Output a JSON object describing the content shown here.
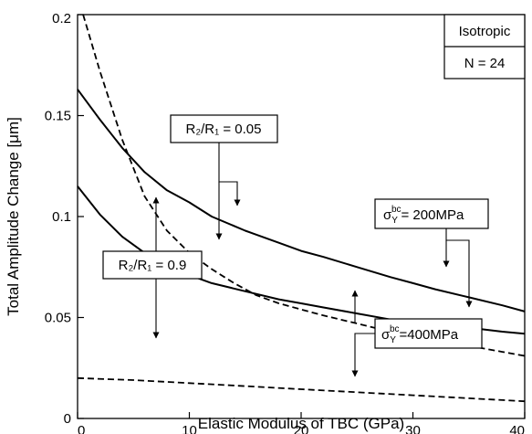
{
  "chart_data": {
    "type": "line",
    "xlabel": "Elastic Modulus of TBC  (GPa)",
    "ylabel": "Total Amplitude Change  [μm]",
    "xlim": [
      0,
      40
    ],
    "ylim": [
      0,
      0.2
    ],
    "x_ticks": [
      "0",
      "10",
      "20",
      "30",
      "40"
    ],
    "y_ticks": [
      "0",
      "0.05",
      "0.1",
      "0.15",
      "0.2"
    ],
    "grid": false,
    "series": [
      {
        "style": "solid",
        "x": [
          0,
          2,
          4,
          6,
          8,
          10,
          12,
          15,
          18,
          20,
          22,
          25,
          28,
          30,
          32,
          35,
          38,
          40
        ],
        "y": [
          0.163,
          0.148,
          0.134,
          0.122,
          0.113,
          0.107,
          0.1,
          0.093,
          0.087,
          0.083,
          0.08,
          0.075,
          0.07,
          0.067,
          0.064,
          0.06,
          0.056,
          0.053
        ]
      },
      {
        "style": "solid",
        "x": [
          0,
          2,
          4,
          6,
          8,
          10,
          12,
          15,
          18,
          20,
          22,
          25,
          28,
          30,
          32,
          35,
          38,
          40
        ],
        "y": [
          0.115,
          0.101,
          0.09,
          0.082,
          0.076,
          0.071,
          0.067,
          0.063,
          0.059,
          0.057,
          0.055,
          0.052,
          0.049,
          0.048,
          0.047,
          0.045,
          0.043,
          0.042
        ]
      },
      {
        "style": "dashed",
        "x": [
          0.5,
          2,
          4,
          6,
          8,
          10,
          12,
          14,
          16,
          18,
          20,
          22,
          25,
          28,
          30,
          32,
          35,
          38,
          40
        ],
        "y": [
          0.2,
          0.172,
          0.138,
          0.11,
          0.093,
          0.082,
          0.074,
          0.067,
          0.061,
          0.057,
          0.054,
          0.051,
          0.047,
          0.043,
          0.041,
          0.039,
          0.036,
          0.033,
          0.031
        ]
      },
      {
        "style": "dashed",
        "x": [
          0,
          5,
          10,
          15,
          20,
          25,
          30,
          35,
          40
        ],
        "y": [
          0.02,
          0.019,
          0.0175,
          0.016,
          0.0145,
          0.013,
          0.0115,
          0.01,
          0.0085
        ]
      }
    ],
    "legend": {
      "line1": "Isotropic",
      "line2": "N = 24",
      "placement": "top-right"
    },
    "annotations": [
      {
        "text": "R₂/R₁ = 0.05"
      },
      {
        "text": "R₂/R₁ = 0.9"
      },
      {
        "sym": "σ",
        "sub": "Y",
        "sup": "bc",
        "text": "= 200MPa"
      },
      {
        "sym": "σ",
        "sub": "Y",
        "sup": "bc",
        "text": "=400MPa"
      }
    ]
  }
}
